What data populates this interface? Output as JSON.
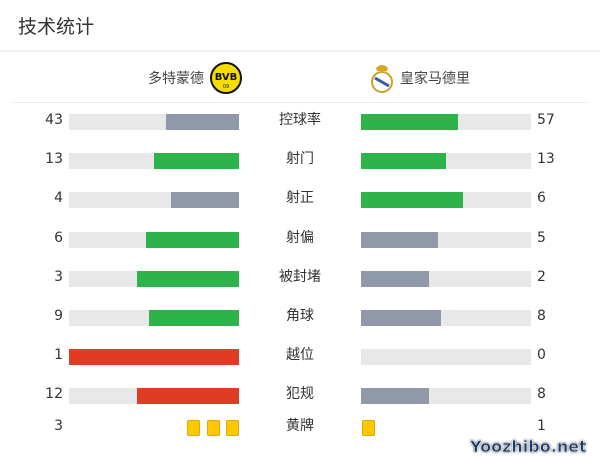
{
  "title": "技术统计",
  "home": {
    "name": "多特蒙德",
    "logo_text": "BVB 09"
  },
  "away": {
    "name": "皇家马德里"
  },
  "colors": {
    "green": "#2db34a",
    "gray": "#9099aa",
    "red": "#e03c24",
    "track": "#e8e8e8",
    "yellow": "#ffc800"
  },
  "stats": [
    {
      "label": "控球率",
      "home": 43,
      "away": 57,
      "home_color": "gray",
      "away_color": "green"
    },
    {
      "label": "射门",
      "home": 13,
      "away": 13,
      "home_color": "green",
      "away_color": "green"
    },
    {
      "label": "射正",
      "home": 4,
      "away": 6,
      "home_color": "gray",
      "away_color": "green"
    },
    {
      "label": "射偏",
      "home": 6,
      "away": 5,
      "home_color": "green",
      "away_color": "gray"
    },
    {
      "label": "被封堵",
      "home": 3,
      "away": 2,
      "home_color": "green",
      "away_color": "gray"
    },
    {
      "label": "角球",
      "home": 9,
      "away": 8,
      "home_color": "green",
      "away_color": "gray"
    },
    {
      "label": "越位",
      "home": 1,
      "away": 0,
      "home_color": "red",
      "away_color": "gray"
    },
    {
      "label": "犯规",
      "home": 12,
      "away": 8,
      "home_color": "red",
      "away_color": "gray"
    }
  ],
  "yellow_cards": {
    "label": "黄牌",
    "home": 3,
    "away": 1
  },
  "watermark": "Yoozhibo.net"
}
